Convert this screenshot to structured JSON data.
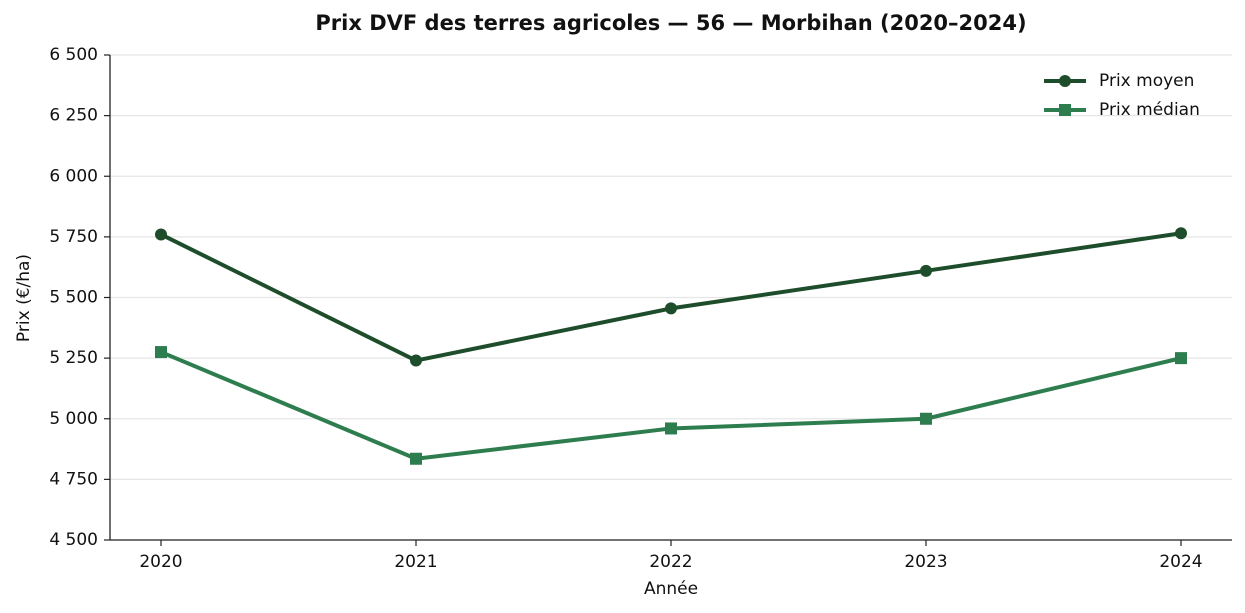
{
  "chart_data": {
    "type": "line",
    "title": "Prix DVF des terres agricoles — 56 — Morbihan (2020–2024)",
    "x_label": "Année",
    "y_label": "Prix (€/ha)",
    "categories": [
      "2020",
      "2021",
      "2022",
      "2023",
      "2024"
    ],
    "series": [
      {
        "name": "Prix moyen",
        "color": "#1e4d2b",
        "marker": "circle",
        "values": [
          5760,
          5240,
          5455,
          5610,
          5765
        ]
      },
      {
        "name": "Prix médian",
        "color": "#2e7d4f",
        "marker": "square",
        "values": [
          5275,
          4835,
          4960,
          5000,
          5250
        ]
      }
    ],
    "ylim": [
      4500,
      6500
    ],
    "yticks": [
      {
        "value": 4500,
        "label": "4 500"
      },
      {
        "value": 4750,
        "label": "4 750"
      },
      {
        "value": 5000,
        "label": "5 000"
      },
      {
        "value": 5250,
        "label": "5 250"
      },
      {
        "value": 5500,
        "label": "5 500"
      },
      {
        "value": 5750,
        "label": "5 750"
      },
      {
        "value": 6000,
        "label": "6 000"
      },
      {
        "value": 6250,
        "label": "6 250"
      },
      {
        "value": 6500,
        "label": "6 500"
      }
    ],
    "grid": true,
    "legend": "upper-right"
  }
}
